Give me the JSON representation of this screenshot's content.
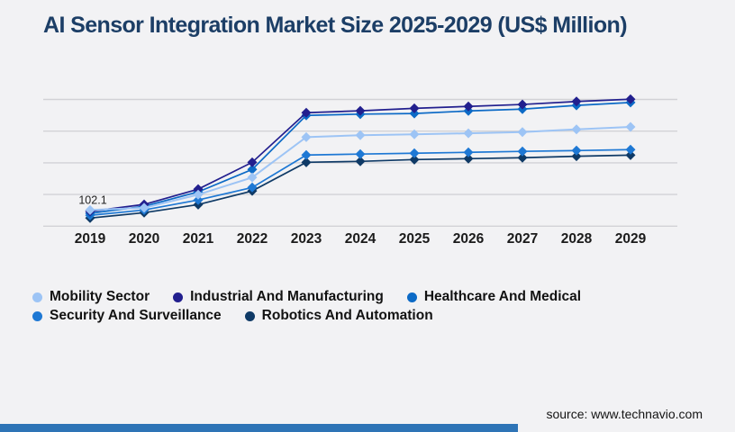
{
  "page": {
    "background_color": "#f2f2f4"
  },
  "header": {
    "title": "AI Sensor Integration Market Size 2025-2029 (US$ Million)",
    "title_color": "#1c3e66"
  },
  "chart_data": {
    "type": "line",
    "title": "AI Sensor Integration Market Size 2025-2029 (US$ Million)",
    "xlabel": "",
    "ylabel": "",
    "x": [
      2019,
      2020,
      2021,
      2022,
      2023,
      2024,
      2025,
      2026,
      2027,
      2028,
      2029
    ],
    "series": [
      {
        "name": "Mobility Sector",
        "color": "#9dc4f5",
        "values": [
          102.1,
          116.3,
          199.2,
          307.5,
          562.4,
          574.2,
          580.1,
          586.3,
          594.0,
          611.2,
          626.5
        ]
      },
      {
        "name": "Industrial And Manufacturing",
        "color": "#221f8e",
        "values": [
          93.4,
          137.2,
          233.6,
          403.1,
          716.2,
          728.4,
          744.0,
          756.1,
          768.3,
          787.2,
          801.5
        ]
      },
      {
        "name": "Healthcare And Medical",
        "color": "#0c6ac6",
        "values": [
          81.2,
          125.4,
          216.3,
          358.2,
          699.1,
          707.3,
          711.2,
          727.4,
          739.1,
          762.3,
          781.0
        ]
      },
      {
        "name": "Security And Surveillance",
        "color": "#1e78d4",
        "values": [
          68.3,
          102.2,
          165.4,
          244.3,
          449.2,
          455.1,
          460.3,
          466.2,
          472.1,
          477.3,
          483.2
        ]
      },
      {
        "name": "Robotics And Automation",
        "color": "#0f3a66",
        "values": [
          51.2,
          85.3,
          136.2,
          222.4,
          403.2,
          409.1,
          420.3,
          426.2,
          432.1,
          441.2,
          448.3
        ]
      }
    ],
    "ylim": [
      0,
      860
    ],
    "gridline_values": [
      0,
      200,
      400,
      600,
      800
    ],
    "grid_color": "#d2d2d6",
    "tick_label_color": "#1b1b1b",
    "marker": "diamond",
    "legend_position": "bottom",
    "annotations": [
      {
        "series": "Mobility Sector",
        "x": 2019,
        "text": "102.1",
        "color": "#222222"
      }
    ]
  },
  "legend": {
    "rows": [
      [
        "Mobility Sector",
        "Industrial And Manufacturing",
        "Healthcare And Medical"
      ],
      [
        "Security And Surveillance",
        "Robotics And Automation"
      ]
    ]
  },
  "footer": {
    "source_text": "source: www.technavio.com",
    "accent_bar_color": "#2e74b6"
  }
}
